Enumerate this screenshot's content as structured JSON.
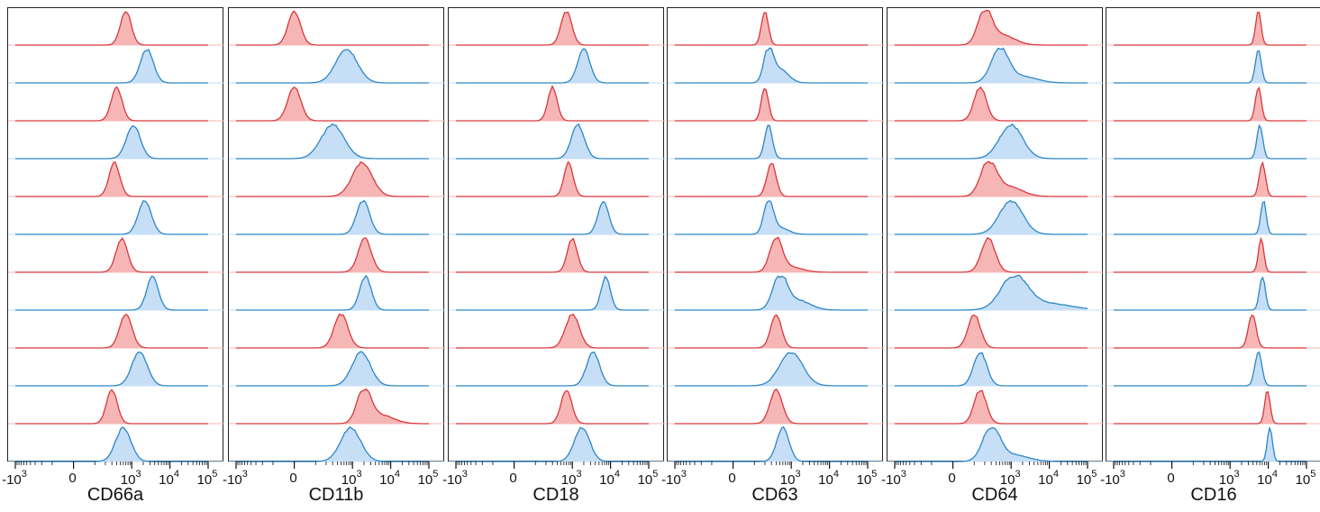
{
  "chart_data": {
    "type": "histogram-stack",
    "x_scale": "biexponential",
    "tick_labels": [
      "-10^3",
      "0",
      "10^3",
      "10^4",
      "10^5"
    ],
    "tick_values": [
      -1000,
      0,
      1000,
      10000,
      100000
    ],
    "series_colors": {
      "red": "#d9383a",
      "blue": "#2c86c7"
    },
    "fill_colors": {
      "red": "#f7b6b6",
      "blue": "#c6dff7"
    },
    "row_pattern": [
      "red",
      "blue",
      "red",
      "blue",
      "red",
      "blue",
      "red",
      "blue",
      "red",
      "blue",
      "red",
      "blue"
    ],
    "panels": [
      {
        "marker": "CD66a",
        "peaks": [
          {
            "center": 700,
            "width": 0.7,
            "tail": 0
          },
          {
            "center": 2500,
            "width": 0.85,
            "tail": 0
          },
          {
            "center": 400,
            "width": 0.7,
            "tail": 0
          },
          {
            "center": 1100,
            "width": 0.9,
            "tail": 0
          },
          {
            "center": 350,
            "width": 0.7,
            "tail": 0
          },
          {
            "center": 2200,
            "width": 0.85,
            "tail": 0
          },
          {
            "center": 550,
            "width": 0.75,
            "tail": 0
          },
          {
            "center": 3500,
            "width": 0.75,
            "tail": 0
          },
          {
            "center": 700,
            "width": 0.8,
            "tail": 0
          },
          {
            "center": 1600,
            "width": 1.0,
            "tail": 0
          },
          {
            "center": 300,
            "width": 0.7,
            "tail": 0
          },
          {
            "center": 600,
            "width": 1.0,
            "tail": 0
          }
        ]
      },
      {
        "marker": "CD11b",
        "peaks": [
          {
            "center": 0,
            "width": 0.8,
            "tail": 0
          },
          {
            "center": 700,
            "width": 1.4,
            "tail": 0
          },
          {
            "center": 0,
            "width": 0.85,
            "tail": 0
          },
          {
            "center": 300,
            "width": 1.5,
            "tail": 0
          },
          {
            "center": 1800,
            "width": 1.3,
            "tail": 0
          },
          {
            "center": 1900,
            "width": 0.85,
            "tail": 0
          },
          {
            "center": 2100,
            "width": 0.85,
            "tail": 0
          },
          {
            "center": 2200,
            "width": 0.75,
            "tail": 0
          },
          {
            "center": 500,
            "width": 0.9,
            "tail": 0
          },
          {
            "center": 1700,
            "width": 1.2,
            "tail": 0
          },
          {
            "center": 2000,
            "width": 0.9,
            "tail": 0.25
          },
          {
            "center": 900,
            "width": 1.3,
            "tail": 0
          }
        ]
      },
      {
        "marker": "CD18",
        "peaks": [
          {
            "center": 700,
            "width": 0.7,
            "tail": 0
          },
          {
            "center": 2000,
            "width": 0.8,
            "tail": 0
          },
          {
            "center": 300,
            "width": 0.6,
            "tail": 0
          },
          {
            "center": 1400,
            "width": 0.85,
            "tail": 0
          },
          {
            "center": 800,
            "width": 0.6,
            "tail": 0
          },
          {
            "center": 6500,
            "width": 0.7,
            "tail": 0
          },
          {
            "center": 1000,
            "width": 0.65,
            "tail": 0
          },
          {
            "center": 7500,
            "width": 0.6,
            "tail": 0
          },
          {
            "center": 1000,
            "width": 0.9,
            "tail": 0
          },
          {
            "center": 3500,
            "width": 0.85,
            "tail": 0
          },
          {
            "center": 700,
            "width": 0.7,
            "tail": 0
          },
          {
            "center": 1800,
            "width": 1.0,
            "tail": 0
          }
        ]
      },
      {
        "marker": "CD63",
        "peaks": [
          {
            "center": 200,
            "width": 0.45,
            "tail": 0
          },
          {
            "center": 250,
            "width": 0.6,
            "tail": 0.4
          },
          {
            "center": 200,
            "width": 0.45,
            "tail": 0
          },
          {
            "center": 250,
            "width": 0.5,
            "tail": 0
          },
          {
            "center": 300,
            "width": 0.6,
            "tail": 0
          },
          {
            "center": 250,
            "width": 0.6,
            "tail": 0.2
          },
          {
            "center": 400,
            "width": 0.8,
            "tail": 0.15
          },
          {
            "center": 500,
            "width": 0.9,
            "tail": 0.3
          },
          {
            "center": 400,
            "width": 0.7,
            "tail": 0
          },
          {
            "center": 1000,
            "width": 1.5,
            "tail": 0
          },
          {
            "center": 400,
            "width": 0.8,
            "tail": 0
          },
          {
            "center": 600,
            "width": 0.8,
            "tail": 0
          }
        ]
      },
      {
        "marker": "CD64",
        "peaks": [
          {
            "center": 200,
            "width": 0.9,
            "tail": 0.3
          },
          {
            "center": 500,
            "width": 1.1,
            "tail": 0.2
          },
          {
            "center": 150,
            "width": 0.8,
            "tail": 0
          },
          {
            "center": 1000,
            "width": 1.5,
            "tail": 0
          },
          {
            "center": 250,
            "width": 1.0,
            "tail": 0.3
          },
          {
            "center": 1000,
            "width": 1.5,
            "tail": 0
          },
          {
            "center": 250,
            "width": 0.9,
            "tail": 0
          },
          {
            "center": 1200,
            "width": 1.7,
            "tail": 0.2
          },
          {
            "center": 100,
            "width": 0.8,
            "tail": 0
          },
          {
            "center": 150,
            "width": 0.85,
            "tail": 0
          },
          {
            "center": 150,
            "width": 0.8,
            "tail": 0
          },
          {
            "center": 300,
            "width": 1.1,
            "tail": 0.2
          }
        ]
      },
      {
        "marker": "CD16",
        "peaks": [
          {
            "center": 5500,
            "width": 0.35,
            "tail": 0
          },
          {
            "center": 5500,
            "width": 0.38,
            "tail": 0
          },
          {
            "center": 5500,
            "width": 0.38,
            "tail": 0
          },
          {
            "center": 6000,
            "width": 0.38,
            "tail": 0
          },
          {
            "center": 7000,
            "width": 0.4,
            "tail": 0
          },
          {
            "center": 7500,
            "width": 0.35,
            "tail": 0
          },
          {
            "center": 6500,
            "width": 0.35,
            "tail": 0
          },
          {
            "center": 7000,
            "width": 0.38,
            "tail": 0
          },
          {
            "center": 3800,
            "width": 0.5,
            "tail": 0
          },
          {
            "center": 5500,
            "width": 0.45,
            "tail": 0
          },
          {
            "center": 9500,
            "width": 0.35,
            "tail": 0
          },
          {
            "center": 11000,
            "width": 0.33,
            "tail": 0
          }
        ]
      }
    ]
  }
}
